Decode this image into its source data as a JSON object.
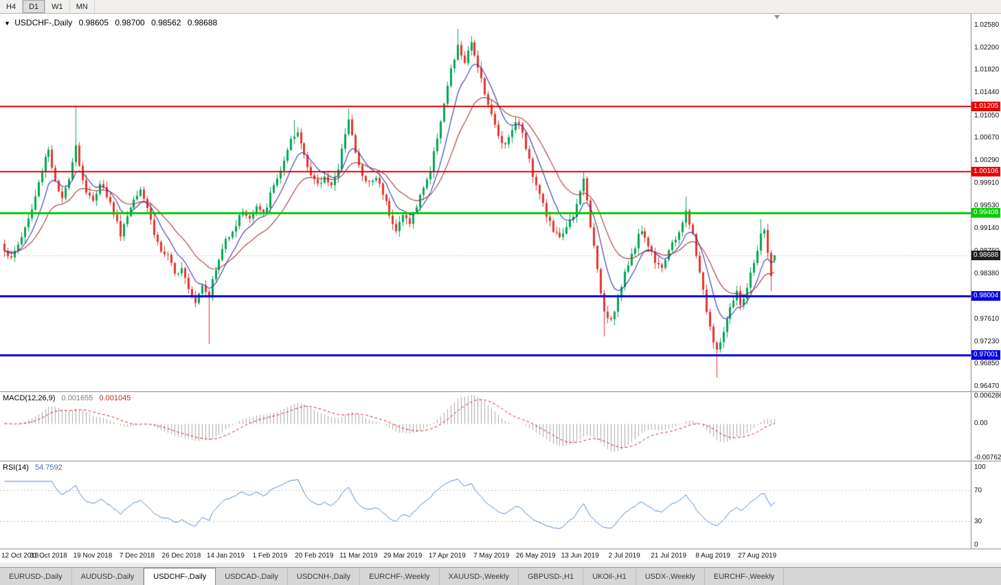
{
  "toolbar": {
    "timeframes": [
      {
        "label": "H4",
        "active": false
      },
      {
        "label": "D1",
        "active": true
      },
      {
        "label": "W1",
        "active": false
      },
      {
        "label": "MN",
        "active": false
      }
    ]
  },
  "chart": {
    "title": {
      "dropdown_icon": "▼",
      "symbol": "USDCHF-,Daily",
      "open": "0.98605",
      "high": "0.98700",
      "low": "0.98562",
      "close": "0.98688"
    }
  },
  "chart_data": {
    "type": "candlestick",
    "symbol": "USDCHF",
    "timeframe": "Daily",
    "visible_bar_count": 227,
    "current_bar": {
      "open": 0.98605,
      "high": 0.987,
      "low": 0.98562,
      "close": 0.98688
    },
    "current_price": 0.98688,
    "y_axis_ticks": [
      "1.02580",
      "1.02200",
      "1.01820",
      "1.01440",
      "1.01050",
      "1.00670",
      "1.00290",
      "0.99910",
      "0.99530",
      "0.99140",
      "0.98760",
      "0.98380",
      "0.98000",
      "0.97610",
      "0.97230",
      "0.96850",
      "0.96470"
    ],
    "x_labels": [
      "12 Oct 2018",
      "31 Oct 2018",
      "19 Nov 2018",
      "7 Dec 2018",
      "26 Dec 2018",
      "14 Jan 2019",
      "1 Feb 2019",
      "20 Feb 2019",
      "11 Mar 2019",
      "29 Mar 2019",
      "17 Apr 2019",
      "7 May 2019",
      "26 May 2019",
      "13 Jun 2019",
      "2 Jul 2019",
      "21 Jul 2019",
      "8 Aug 2019",
      "27 Aug 2019"
    ],
    "x_label_interval": 13,
    "horizontal_levels": [
      {
        "price": 1.01205,
        "label": "1.01205",
        "color": "#e60000",
        "thickness": 2
      },
      {
        "price": 1.00106,
        "label": "1.00106",
        "color": "#e60000",
        "thickness": 2
      },
      {
        "price": 0.99408,
        "label": "0.99408",
        "color": "#00cc00",
        "thickness": 3
      },
      {
        "price": 0.98004,
        "label": "0.98004",
        "color": "#0000e6",
        "thickness": 3
      },
      {
        "price": 0.97001,
        "label": "0.97001",
        "color": "#0000e6",
        "thickness": 3
      }
    ],
    "close_keypoints": [
      [
        0,
        0.988
      ],
      [
        2,
        0.9862
      ],
      [
        5,
        0.9901
      ],
      [
        8,
        0.9946
      ],
      [
        10,
        0.9991
      ],
      [
        12,
        1.0036
      ],
      [
        13,
        1.0049
      ],
      [
        15,
        0.9992
      ],
      [
        17,
        0.9961
      ],
      [
        19,
        1.0002
      ],
      [
        21,
        1.0058
      ],
      [
        22,
        1.0021
      ],
      [
        24,
        0.9976
      ],
      [
        26,
        0.9959
      ],
      [
        28,
        0.9994
      ],
      [
        30,
        0.9971
      ],
      [
        32,
        0.9941
      ],
      [
        34,
        0.9906
      ],
      [
        36,
        0.9936
      ],
      [
        38,
        0.9966
      ],
      [
        40,
        0.9984
      ],
      [
        42,
        0.9951
      ],
      [
        44,
        0.9906
      ],
      [
        46,
        0.9876
      ],
      [
        48,
        0.9866
      ],
      [
        50,
        0.9836
      ],
      [
        52,
        0.9851
      ],
      [
        54,
        0.9816
      ],
      [
        56,
        0.9791
      ],
      [
        58,
        0.9821
      ],
      [
        60,
        0.9801
      ],
      [
        61,
        0.9826
      ],
      [
        63,
        0.9861
      ],
      [
        65,
        0.9896
      ],
      [
        68,
        0.9921
      ],
      [
        70,
        0.9946
      ],
      [
        72,
        0.9931
      ],
      [
        74,
        0.9951
      ],
      [
        76,
        0.9936
      ],
      [
        78,
        0.9971
      ],
      [
        80,
        1.0001
      ],
      [
        82,
        1.0026
      ],
      [
        84,
        1.0061
      ],
      [
        86,
        1.0076
      ],
      [
        88,
        1.0041
      ],
      [
        90,
        1.0006
      ],
      [
        92,
        0.9986
      ],
      [
        94,
        1.0001
      ],
      [
        96,
        0.9991
      ],
      [
        98,
        1.0011
      ],
      [
        100,
        1.0079
      ],
      [
        101,
        1.0104
      ],
      [
        103,
        1.0041
      ],
      [
        105,
        1.0001
      ],
      [
        107,
        0.9991
      ],
      [
        109,
        1.0001
      ],
      [
        111,
        0.9976
      ],
      [
        113,
        0.9941
      ],
      [
        115,
        0.9911
      ],
      [
        117,
        0.9936
      ],
      [
        119,
        0.9926
      ],
      [
        121,
        0.9951
      ],
      [
        123,
        0.9986
      ],
      [
        125,
        1.0011
      ],
      [
        127,
        1.0071
      ],
      [
        129,
        1.0126
      ],
      [
        131,
        1.0181
      ],
      [
        133,
        1.0221
      ],
      [
        135,
        1.0196
      ],
      [
        137,
        1.0226
      ],
      [
        139,
        1.0191
      ],
      [
        141,
        1.0146
      ],
      [
        143,
        1.0106
      ],
      [
        145,
        1.0071
      ],
      [
        147,
        1.0056
      ],
      [
        149,
        1.0086
      ],
      [
        151,
        1.0096
      ],
      [
        153,
        1.0051
      ],
      [
        155,
        1.0006
      ],
      [
        157,
        0.9976
      ],
      [
        159,
        0.9936
      ],
      [
        161,
        0.9911
      ],
      [
        163,
        0.9896
      ],
      [
        165,
        0.9921
      ],
      [
        167,
        0.9931
      ],
      [
        169,
        0.9976
      ],
      [
        170,
        0.9999
      ],
      [
        172,
        0.9921
      ],
      [
        174,
        0.9841
      ],
      [
        176,
        0.9776
      ],
      [
        178,
        0.9761
      ],
      [
        180,
        0.9796
      ],
      [
        182,
        0.9836
      ],
      [
        184,
        0.9871
      ],
      [
        186,
        0.9901
      ],
      [
        187,
        0.9913
      ],
      [
        189,
        0.9886
      ],
      [
        191,
        0.9861
      ],
      [
        193,
        0.9851
      ],
      [
        195,
        0.9876
      ],
      [
        197,
        0.9896
      ],
      [
        199,
        0.9926
      ],
      [
        200,
        0.9941
      ],
      [
        202,
        0.9901
      ],
      [
        204,
        0.9841
      ],
      [
        206,
        0.9776
      ],
      [
        208,
        0.9721
      ],
      [
        209,
        0.9706
      ],
      [
        211,
        0.9741
      ],
      [
        213,
        0.9776
      ],
      [
        215,
        0.9806
      ],
      [
        216,
        0.9781
      ],
      [
        218,
        0.9816
      ],
      [
        220,
        0.9856
      ],
      [
        222,
        0.9901
      ],
      [
        223,
        0.9911
      ],
      [
        224,
        0.9871
      ],
      [
        225,
        0.9839
      ],
      [
        226,
        0.98688
      ]
    ],
    "spikes": [
      {
        "bar": 21,
        "high": 1.0121
      },
      {
        "bar": 60,
        "low": 0.9719
      },
      {
        "bar": 85,
        "high": 1.0098
      },
      {
        "bar": 101,
        "high": 1.0118
      },
      {
        "bar": 133,
        "high": 1.0252
      },
      {
        "bar": 137,
        "high": 1.024
      },
      {
        "bar": 170,
        "high": 1.0011
      },
      {
        "bar": 176,
        "low": 0.9732
      },
      {
        "bar": 200,
        "high": 0.9968
      },
      {
        "bar": 209,
        "low": 0.9662
      },
      {
        "bar": 222,
        "high": 0.993
      },
      {
        "bar": 225,
        "low": 0.9808
      }
    ],
    "colors": {
      "candle_up": "#00a651",
      "candle_down": "#e8332e",
      "ma_fast": "#3333aa",
      "ma_slow": "#aa3333",
      "current_price_box": "#1f1f1f",
      "level_red": "#e60000",
      "level_green": "#00cc00",
      "level_blue": "#0000e6"
    },
    "indicators": {
      "macd": {
        "label": "MACD(12,26,9)",
        "value_main": "0.001655",
        "value_signal": "0.001045",
        "y_ticks": [
          "0.006286",
          "0.00",
          "-0.00762"
        ],
        "histogram_color": "#a9a9a9",
        "signal_color": "#d02020"
      },
      "rsi": {
        "label": "RSI(14)",
        "value": "54.7592",
        "y_ticks": [
          "100",
          "70",
          "30",
          "0"
        ],
        "levels": [
          70,
          30
        ],
        "line_color": "#4f86c6"
      }
    }
  },
  "tabs": [
    {
      "label": "EURUSD-,Daily",
      "active": false
    },
    {
      "label": "AUDUSD-,Daily",
      "active": false
    },
    {
      "label": "USDCHF-,Daily",
      "active": true
    },
    {
      "label": "USDCAD-,Daily",
      "active": false
    },
    {
      "label": "USDCNH-,Daily",
      "active": false
    },
    {
      "label": "EURCHF-,Weekly",
      "active": false
    },
    {
      "label": "XAUUSD-,Weekly",
      "active": false
    },
    {
      "label": "GBPUSD-,H1",
      "active": false
    },
    {
      "label": "UKOil-,H1",
      "active": false
    },
    {
      "label": "USDX-,Weekly",
      "active": false
    },
    {
      "label": "EURCHF-,Weekly",
      "active": false
    }
  ]
}
